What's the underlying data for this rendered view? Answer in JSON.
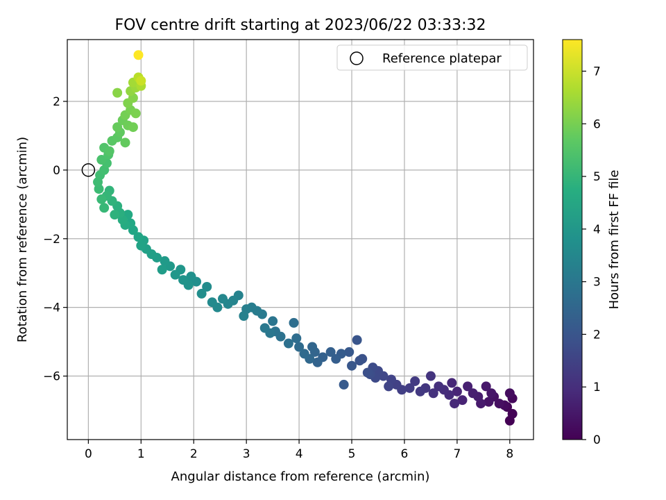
{
  "chart_data": {
    "type": "scatter",
    "title": "FOV centre drift starting at 2023/06/22 03:33:32",
    "xlabel": "Angular distance from reference (arcmin)",
    "ylabel": "Rotation from reference (arcmin)",
    "xlim": [
      -0.4,
      8.45
    ],
    "ylim": [
      -7.85,
      3.8
    ],
    "xticks": [
      "0",
      "1",
      "2",
      "3",
      "4",
      "5",
      "6",
      "7",
      "8"
    ],
    "yticks": [
      "−6",
      "−4",
      "−2",
      "0",
      "2"
    ],
    "grid": true,
    "legend": {
      "placement": "top-right",
      "entries": [
        "Reference platepar"
      ]
    },
    "reference_point": {
      "x": 0,
      "y": 0
    },
    "colorbar": {
      "label": "Hours from first FF file",
      "range": [
        0,
        7.6
      ],
      "ticks": [
        "0",
        "1",
        "2",
        "3",
        "4",
        "5",
        "6",
        "7"
      ],
      "colormap": "viridis"
    },
    "points": [
      [
        8.0,
        -7.3,
        0.0
      ],
      [
        8.05,
        -7.1,
        0.05
      ],
      [
        7.95,
        -6.9,
        0.1
      ],
      [
        8.05,
        -6.65,
        0.15
      ],
      [
        7.9,
        -6.85,
        0.2
      ],
      [
        8.0,
        -6.5,
        0.25
      ],
      [
        7.8,
        -6.8,
        0.3
      ],
      [
        7.7,
        -6.6,
        0.35
      ],
      [
        7.6,
        -6.75,
        0.4
      ],
      [
        7.65,
        -6.5,
        0.45
      ],
      [
        7.55,
        -6.3,
        0.5
      ],
      [
        7.45,
        -6.8,
        0.55
      ],
      [
        7.4,
        -6.6,
        0.6
      ],
      [
        7.3,
        -6.5,
        0.65
      ],
      [
        7.2,
        -6.3,
        0.7
      ],
      [
        7.1,
        -6.7,
        0.75
      ],
      [
        7.0,
        -6.45,
        0.8
      ],
      [
        6.9,
        -6.2,
        0.85
      ],
      [
        6.95,
        -6.8,
        0.9
      ],
      [
        6.85,
        -6.55,
        0.95
      ],
      [
        6.75,
        -6.4,
        1.0
      ],
      [
        6.65,
        -6.3,
        1.05
      ],
      [
        6.55,
        -6.5,
        1.1
      ],
      [
        6.5,
        -6.0,
        1.15
      ],
      [
        6.4,
        -6.35,
        1.2
      ],
      [
        6.3,
        -6.45,
        1.25
      ],
      [
        6.2,
        -6.15,
        1.3
      ],
      [
        6.1,
        -6.35,
        1.35
      ],
      [
        5.95,
        -6.4,
        1.4
      ],
      [
        5.85,
        -6.25,
        1.45
      ],
      [
        5.75,
        -6.1,
        1.5
      ],
      [
        5.7,
        -6.3,
        1.55
      ],
      [
        5.6,
        -6.0,
        1.6
      ],
      [
        5.5,
        -5.85,
        1.65
      ],
      [
        5.45,
        -6.05,
        1.7
      ],
      [
        5.4,
        -5.75,
        1.75
      ],
      [
        5.35,
        -5.95,
        1.8
      ],
      [
        5.3,
        -5.9,
        1.85
      ],
      [
        5.2,
        -5.5,
        1.9
      ],
      [
        5.15,
        -5.55,
        1.95
      ],
      [
        5.1,
        -4.95,
        2.0
      ],
      [
        5.0,
        -5.7,
        2.05
      ],
      [
        4.95,
        -5.3,
        2.1
      ],
      [
        4.85,
        -6.25,
        2.15
      ],
      [
        4.8,
        -5.35,
        2.2
      ],
      [
        4.7,
        -5.5,
        2.25
      ],
      [
        4.6,
        -5.3,
        2.3
      ],
      [
        4.45,
        -5.45,
        2.35
      ],
      [
        4.35,
        -5.6,
        2.4
      ],
      [
        4.3,
        -5.3,
        2.45
      ],
      [
        4.25,
        -5.15,
        2.5
      ],
      [
        4.2,
        -5.5,
        2.55
      ],
      [
        4.1,
        -5.35,
        2.6
      ],
      [
        4.0,
        -5.15,
        2.65
      ],
      [
        3.95,
        -4.9,
        2.7
      ],
      [
        3.9,
        -4.45,
        2.75
      ],
      [
        3.8,
        -5.05,
        2.8
      ],
      [
        3.65,
        -4.85,
        2.85
      ],
      [
        3.55,
        -4.7,
        2.9
      ],
      [
        3.5,
        -4.4,
        2.95
      ],
      [
        3.45,
        -4.75,
        3.0
      ],
      [
        3.35,
        -4.6,
        3.05
      ],
      [
        3.3,
        -4.2,
        3.1
      ],
      [
        3.2,
        -4.1,
        3.15
      ],
      [
        3.1,
        -4.0,
        3.2
      ],
      [
        3.0,
        -4.05,
        3.25
      ],
      [
        2.95,
        -4.25,
        3.3
      ],
      [
        2.85,
        -3.65,
        3.35
      ],
      [
        2.75,
        -3.8,
        3.4
      ],
      [
        2.65,
        -3.9,
        3.45
      ],
      [
        2.55,
        -3.75,
        3.5
      ],
      [
        2.45,
        -4.0,
        3.55
      ],
      [
        2.35,
        -3.85,
        3.6
      ],
      [
        2.25,
        -3.4,
        3.65
      ],
      [
        2.15,
        -3.6,
        3.7
      ],
      [
        2.05,
        -3.25,
        3.75
      ],
      [
        1.95,
        -3.1,
        3.8
      ],
      [
        1.9,
        -3.35,
        3.85
      ],
      [
        1.8,
        -3.2,
        3.9
      ],
      [
        1.75,
        -2.9,
        3.95
      ],
      [
        1.65,
        -3.05,
        4.0
      ],
      [
        1.55,
        -2.8,
        4.05
      ],
      [
        1.45,
        -2.65,
        4.1
      ],
      [
        1.4,
        -2.9,
        4.15
      ],
      [
        1.3,
        -2.55,
        4.2
      ],
      [
        1.2,
        -2.45,
        4.25
      ],
      [
        1.1,
        -2.3,
        4.3
      ],
      [
        1.05,
        -2.05,
        4.35
      ],
      [
        1.0,
        -2.2,
        4.4
      ],
      [
        0.95,
        -1.95,
        4.45
      ],
      [
        0.85,
        -1.75,
        4.5
      ],
      [
        0.8,
        -1.55,
        4.55
      ],
      [
        0.75,
        -1.3,
        4.6
      ],
      [
        0.7,
        -1.6,
        4.65
      ],
      [
        0.65,
        -1.45,
        4.7
      ],
      [
        0.6,
        -1.25,
        4.75
      ],
      [
        0.55,
        -1.05,
        4.8
      ],
      [
        0.5,
        -1.3,
        4.85
      ],
      [
        0.45,
        -0.9,
        4.9
      ],
      [
        0.4,
        -0.6,
        4.95
      ],
      [
        0.35,
        -0.75,
        5.0
      ],
      [
        0.3,
        -1.1,
        5.05
      ],
      [
        0.25,
        -0.85,
        5.1
      ],
      [
        0.2,
        -0.55,
        5.15
      ],
      [
        0.18,
        -0.35,
        5.2
      ],
      [
        0.22,
        -0.15,
        5.25
      ],
      [
        0.3,
        0.0,
        5.3
      ],
      [
        0.35,
        0.2,
        5.35
      ],
      [
        0.25,
        0.3,
        5.4
      ],
      [
        0.38,
        0.45,
        5.45
      ],
      [
        0.3,
        0.65,
        5.5
      ],
      [
        0.4,
        0.55,
        5.55
      ],
      [
        0.45,
        0.85,
        5.6
      ],
      [
        0.55,
        0.95,
        5.65
      ],
      [
        0.6,
        1.1,
        5.7
      ],
      [
        0.7,
        0.8,
        5.75
      ],
      [
        0.55,
        1.25,
        5.8
      ],
      [
        0.65,
        1.45,
        5.85
      ],
      [
        0.75,
        1.3,
        5.9
      ],
      [
        0.85,
        1.25,
        5.95
      ],
      [
        0.7,
        1.6,
        6.0
      ],
      [
        0.8,
        1.75,
        6.05
      ],
      [
        0.9,
        1.65,
        6.1
      ],
      [
        0.75,
        1.95,
        6.15
      ],
      [
        0.85,
        2.1,
        6.2
      ],
      [
        0.55,
        2.25,
        6.25
      ],
      [
        0.8,
        2.3,
        6.35
      ],
      [
        0.9,
        2.4,
        6.45
      ],
      [
        0.85,
        2.55,
        6.55
      ],
      [
        1.0,
        2.45,
        6.65
      ],
      [
        0.95,
        2.7,
        6.8
      ],
      [
        1.0,
        2.6,
        7.0
      ],
      [
        0.95,
        3.35,
        7.6
      ]
    ]
  }
}
